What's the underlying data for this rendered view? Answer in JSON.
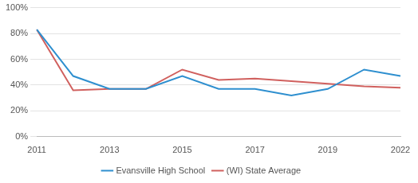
{
  "chart_data": {
    "type": "line",
    "categories": [
      "2011",
      null,
      "2013",
      null,
      "2015",
      null,
      "2017",
      null,
      "2019",
      null,
      "2022"
    ],
    "series": [
      {
        "name": "Evansville High School",
        "color": "#2e8fcf",
        "values": [
          83,
          47,
          37,
          37,
          47,
          37,
          37,
          32,
          37,
          52,
          47
        ]
      },
      {
        "name": "(WI) State Average",
        "color": "#d0605e",
        "values": [
          83,
          36,
          37,
          37,
          52,
          44,
          45,
          43,
          41,
          39,
          38
        ]
      }
    ],
    "ylim": [
      0,
      100
    ],
    "yticks": [
      {
        "value": 0,
        "label": "0%"
      },
      {
        "value": 20,
        "label": "20%"
      },
      {
        "value": 40,
        "label": "40%"
      },
      {
        "value": 60,
        "label": "60%"
      },
      {
        "value": 80,
        "label": "80%"
      },
      {
        "value": 100,
        "label": "100%"
      }
    ],
    "grid": true,
    "legend": "bottom"
  }
}
